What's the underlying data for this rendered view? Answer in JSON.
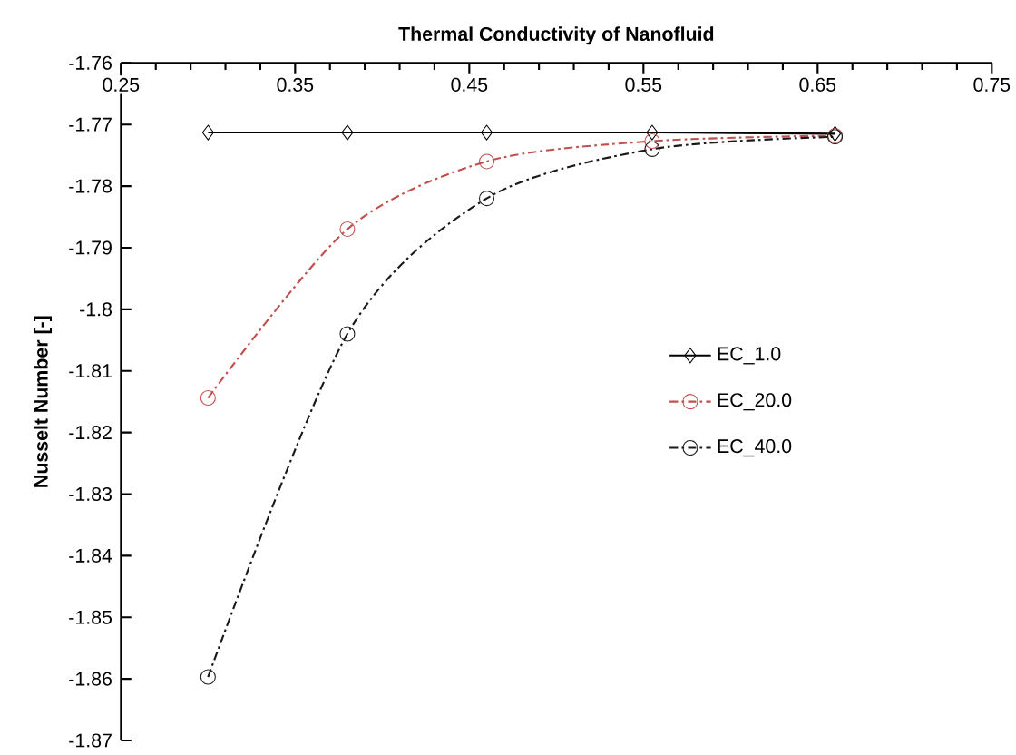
{
  "chart_data": {
    "type": "line",
    "title": "Thermal Conductivity  of Nanofluid",
    "ylabel": "Nusselt Number [-]",
    "x": [
      0.3,
      0.38,
      0.46,
      0.555,
      0.66
    ],
    "series": [
      {
        "name": "EC_1.0",
        "color": "#000000",
        "marker": "diamond",
        "line_style": "solid",
        "values": [
          -1.7713,
          -1.7713,
          -1.7713,
          -1.7713,
          -1.7715
        ]
      },
      {
        "name": "EC_20.0",
        "color": "#c0504d",
        "marker": "circle",
        "line_style": "dashed",
        "values": [
          -1.8144,
          -1.787,
          -1.776,
          -1.7727,
          -1.7718
        ]
      },
      {
        "name": "EC_40.0",
        "color": "#1a1a1a",
        "marker": "circle",
        "line_style": "dashed",
        "values": [
          -1.8597,
          -1.804,
          -1.782,
          -1.774,
          -1.772
        ]
      }
    ],
    "xlim": [
      0.25,
      0.75
    ],
    "xticks": [
      0.25,
      0.35,
      0.45,
      0.55,
      0.65,
      0.75
    ],
    "ylim": [
      -1.87,
      -1.76
    ],
    "yticks": [
      -1.87,
      -1.86,
      -1.85,
      -1.84,
      -1.83,
      -1.82,
      -1.81,
      -1.8,
      -1.79,
      -1.78,
      -1.77,
      -1.76
    ],
    "grid": false,
    "legend": "right"
  }
}
